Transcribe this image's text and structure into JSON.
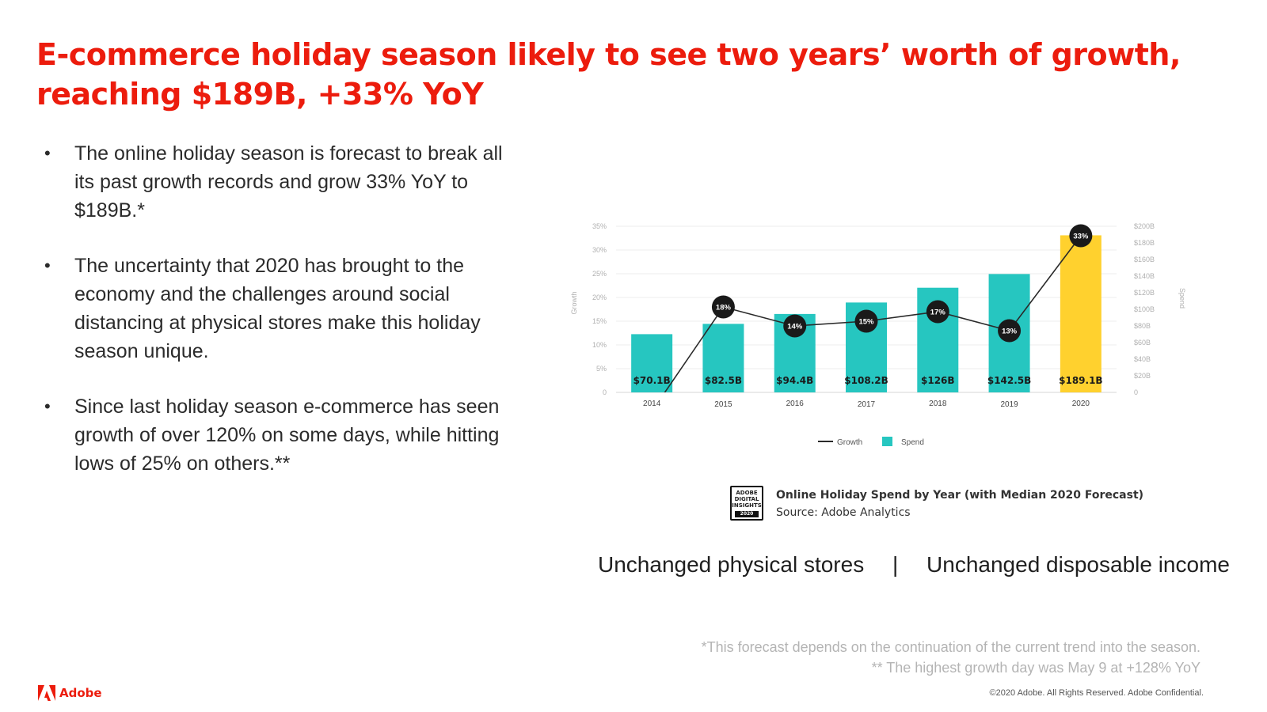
{
  "title": {
    "line1": "E-commerce holiday season likely to see two years’ worth of growth,",
    "line2": "reaching $189B, +33% YoY"
  },
  "bullets": [
    {
      "lines": [
        "The online holiday season is forecast to break all",
        "its past growth records and grow 33% YoY to",
        "$189B.*"
      ]
    },
    {
      "lines": [
        "The uncertainty that 2020 has brought to the",
        "economy and the challenges around social",
        "distancing at physical stores make this holiday",
        "season unique."
      ]
    },
    {
      "lines": [
        "Since last holiday season e-commerce has seen",
        "growth of over 120% on some days, while hitting",
        "lows of 25% on others.**"
      ]
    }
  ],
  "bullet_glyph": "•",
  "chart_data": {
    "type": "bar",
    "categories": [
      "2014",
      "2015",
      "2016",
      "2017",
      "2018",
      "2019",
      "2020"
    ],
    "series": [
      {
        "name": "Spend",
        "type": "bar",
        "values": [
          70.1,
          82.5,
          94.4,
          108.2,
          126,
          142.5,
          189.1
        ],
        "data_labels": [
          "$70.1B",
          "$82.5B",
          "$94.4B",
          "$108.2B",
          "$126B",
          "$142.5B",
          "$189.1B"
        ]
      },
      {
        "name": "Growth",
        "type": "line",
        "values": [
          -4,
          18,
          14,
          15,
          17,
          13,
          33
        ],
        "data_labels": [
          "",
          "18%",
          "14%",
          "15%",
          "17%",
          "13%",
          "33%"
        ]
      }
    ],
    "ylabel_left": "Growth",
    "ylabel_right": "Spend",
    "yticks_left": [
      "0",
      "5%",
      "10%",
      "15%",
      "20%",
      "25%",
      "30%",
      "35%"
    ],
    "yticks_right": [
      "0",
      "$20B",
      "$40B",
      "$60B",
      "$80B",
      "$100B",
      "$120B",
      "$140B",
      "$160B",
      "$180B",
      "$200B"
    ],
    "ylim_left": [
      0,
      35
    ],
    "ylim_right": [
      0,
      200
    ],
    "grid": true,
    "legend": "bottom",
    "colors": {
      "bar": "#26c6c0",
      "bar_highlight": "#ffd12e",
      "line": "#2a2a2a",
      "marker": "#1a1a1a"
    }
  },
  "caption": {
    "badge_lines": [
      "ADOBE",
      "DIGITAL",
      "INSIGHTS"
    ],
    "badge_year": "2020",
    "title": "Online Holiday Spend by Year (with Median 2020 Forecast)",
    "source": "Source: Adobe Analytics"
  },
  "unchanged": {
    "left": "Unchanged physical stores",
    "separator": "|",
    "right": "Unchanged disposable income"
  },
  "footnotes": {
    "note1": "*This forecast depends on the continuation of the current trend into the season.",
    "note2": "** The highest growth day was May 9 at +128% YoY"
  },
  "copyright": "©2020 Adobe. All Rights Reserved. Adobe Confidential.",
  "brand": {
    "name": "Adobe",
    "color": "#ec1c0d"
  }
}
